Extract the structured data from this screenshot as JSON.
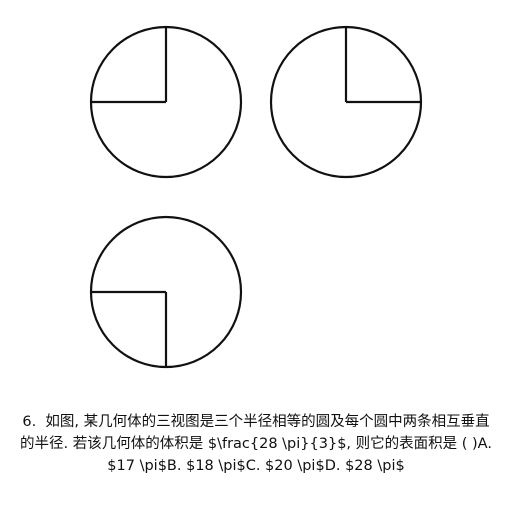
{
  "question": {
    "text": "6.  如图, 某几何体的三视图是三个半径相等的圆及每个圆中两条相互垂直的半径. 若该几何体的体积是 $\\frac{28 \\pi}{3}$, 则它的表面积是 ( )A. $17 \\pi$B. $18 \\pi$C. $20 \\pi$D. $28 \\pi$"
  },
  "colors": {
    "stroke": "#111111",
    "background": "#ffffff",
    "text": "#111111"
  }
}
